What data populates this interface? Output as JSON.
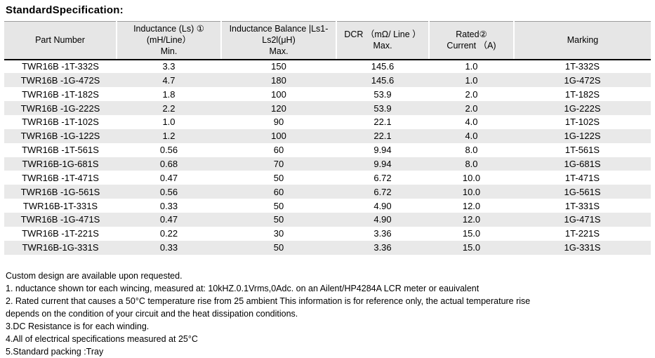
{
  "title": "StandardSpecification:",
  "colors": {
    "stripe": "#e9e9e9",
    "header_bg": "#e6e6e6",
    "header_rule": "#000000",
    "text": "#000000"
  },
  "table": {
    "columns": [
      {
        "id": "part-number",
        "label_lines": [
          "Part Number"
        ]
      },
      {
        "id": "inductance",
        "label_lines": [
          "Inductance (Ls) ①",
          "(mH/Line）",
          "Min."
        ]
      },
      {
        "id": "inductance-balance",
        "label_lines": [
          "Inductance Balance |Ls1-",
          "Ls2l(μH)",
          "Max."
        ]
      },
      {
        "id": "dcr",
        "label_lines": [
          "DCR （mΩ/ Line ）",
          "Max."
        ]
      },
      {
        "id": "rated-current",
        "label_lines": [
          "Rated②",
          "Current （A)"
        ]
      },
      {
        "id": "marking",
        "label_lines": [
          "Marking"
        ]
      }
    ],
    "rows": [
      [
        "TWR16B -1T-332S",
        "3.3",
        "150",
        "145.6",
        "1.0",
        "1T-332S"
      ],
      [
        "TWR16B -1G-472S",
        "4.7",
        "180",
        "145.6",
        "1.0",
        "1G-472S"
      ],
      [
        "TWR16B -1T-182S",
        "1.8",
        "100",
        "53.9",
        "2.0",
        "1T-182S"
      ],
      [
        "TWR16B -1G-222S",
        "2.2",
        "120",
        "53.9",
        "2.0",
        "1G-222S"
      ],
      [
        "TWR16B -1T-102S",
        "1.0",
        "90",
        "22.1",
        "4.0",
        "1T-102S"
      ],
      [
        "TWR16B -1G-122S",
        "1.2",
        "100",
        "22.1",
        "4.0",
        "1G-122S"
      ],
      [
        "TWR16B -1T-561S",
        "0.56",
        "60",
        "9.94",
        "8.0",
        "1T-561S"
      ],
      [
        "TWR16B-1G-681S",
        "0.68",
        "70",
        "9.94",
        "8.0",
        "1G-681S"
      ],
      [
        "TWR16B -1T-471S",
        "0.47",
        "50",
        "6.72",
        "10.0",
        "1T-471S"
      ],
      [
        "TWR16B -1G-561S",
        "0.56",
        "60",
        "6.72",
        "10.0",
        "1G-561S"
      ],
      [
        "TWR16B-1T-331S",
        "0.33",
        "50",
        "4.90",
        "12.0",
        "1T-331S"
      ],
      [
        "TWR16B -1G-471S",
        "0.47",
        "50",
        "4.90",
        "12.0",
        "1G-471S"
      ],
      [
        "TWR16B -1T-221S",
        "0.22",
        "30",
        "3.36",
        "15.0",
        "1T-221S"
      ],
      [
        "TWR16B-1G-331S",
        "0.33",
        "50",
        "3.36",
        "15.0",
        "1G-331S"
      ]
    ]
  },
  "notes": [
    "Custom design are available upon requested.",
    "1. nductance shown tor each wincing, measured at: 10kHZ.0.1Vrms,0Adc. on an Ailent/HP4284A LCR meter or eauivalent",
    "2. Rated current that causes a 50°C temperature rise from 25 ambient This information is for reference only, the actual temperature rise",
    "depends on the condition of your circuit and the heat dissipation conditions.",
    "3.DC Resistance is for each winding.",
    "4.All of electrical specifications measured at 25°C",
    "5.Standard packing :Tray"
  ]
}
